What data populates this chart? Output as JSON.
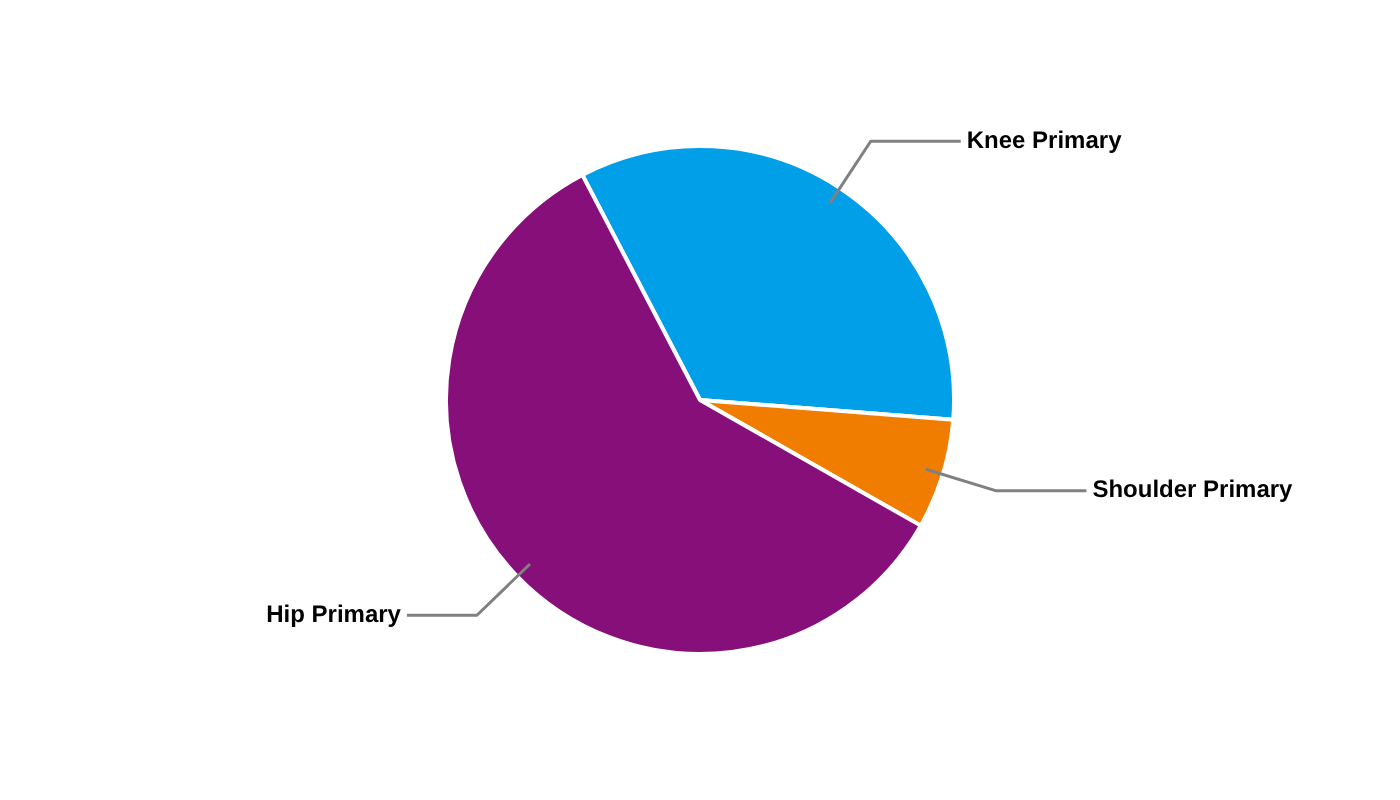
{
  "chart_data": {
    "type": "pie",
    "categories": [
      "Knee Primary",
      "Shoulder Primary",
      "Hip Primary"
    ],
    "values": [
      33.9,
      7.0,
      59.1
    ],
    "colors": [
      "#009fe8",
      "#f07d00",
      "#870f7a"
    ],
    "legend": false
  }
}
